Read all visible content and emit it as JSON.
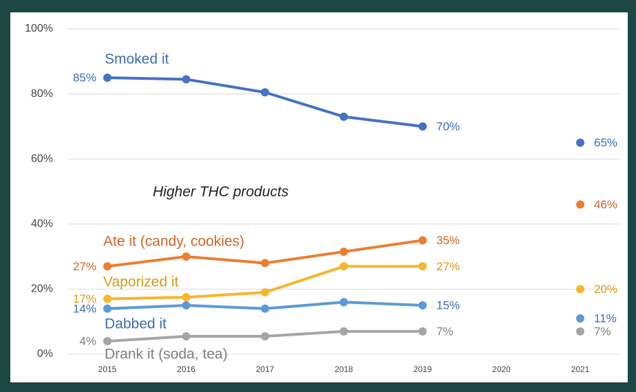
{
  "chart_data": {
    "type": "line",
    "annotations": [
      "Higher THC products"
    ],
    "categories": [
      "2015",
      "2016",
      "2017",
      "2018",
      "2019",
      "2020",
      "2021"
    ],
    "ylim": [
      0,
      100
    ],
    "yticks": [
      {
        "value": 0,
        "label": "0%"
      },
      {
        "value": 20,
        "label": "20%"
      },
      {
        "value": 40,
        "label": "40%"
      },
      {
        "value": 60,
        "label": "60%"
      },
      {
        "value": 80,
        "label": "80%"
      },
      {
        "value": 100,
        "label": "100%"
      }
    ],
    "grid": true,
    "series": [
      {
        "name": "Smoked it",
        "color": "#4472c4",
        "values": [
          85,
          84.5,
          80.5,
          73,
          70,
          null,
          65
        ],
        "value_labels": [
          "85%",
          null,
          null,
          null,
          "70%",
          null,
          "65%"
        ]
      },
      {
        "name": "Ate it (candy, cookies)",
        "color": "#ed7d31",
        "values": [
          27,
          30,
          28,
          31.5,
          35,
          null,
          46
        ],
        "value_labels": [
          "27%",
          null,
          null,
          null,
          "35%",
          null,
          "46%"
        ]
      },
      {
        "name": "Vaporized it",
        "color": "#f7b52c",
        "values": [
          17,
          17.5,
          19,
          27,
          27,
          null,
          20
        ],
        "value_labels": [
          "17%",
          null,
          null,
          null,
          "27%",
          null,
          "20%"
        ]
      },
      {
        "name": "Dabbed it",
        "color": "#5b9bd5",
        "values": [
          14,
          15,
          14,
          16,
          15,
          null,
          11
        ],
        "value_labels": [
          "14%",
          null,
          null,
          null,
          "15%",
          null,
          "11%"
        ]
      },
      {
        "name": "Drank it (soda, tea)",
        "color": "#a5a5a5",
        "values": [
          4,
          5.5,
          5.5,
          7,
          7,
          null,
          7
        ],
        "value_labels": [
          "4%",
          null,
          null,
          null,
          "7%",
          null,
          "7%"
        ]
      }
    ]
  }
}
